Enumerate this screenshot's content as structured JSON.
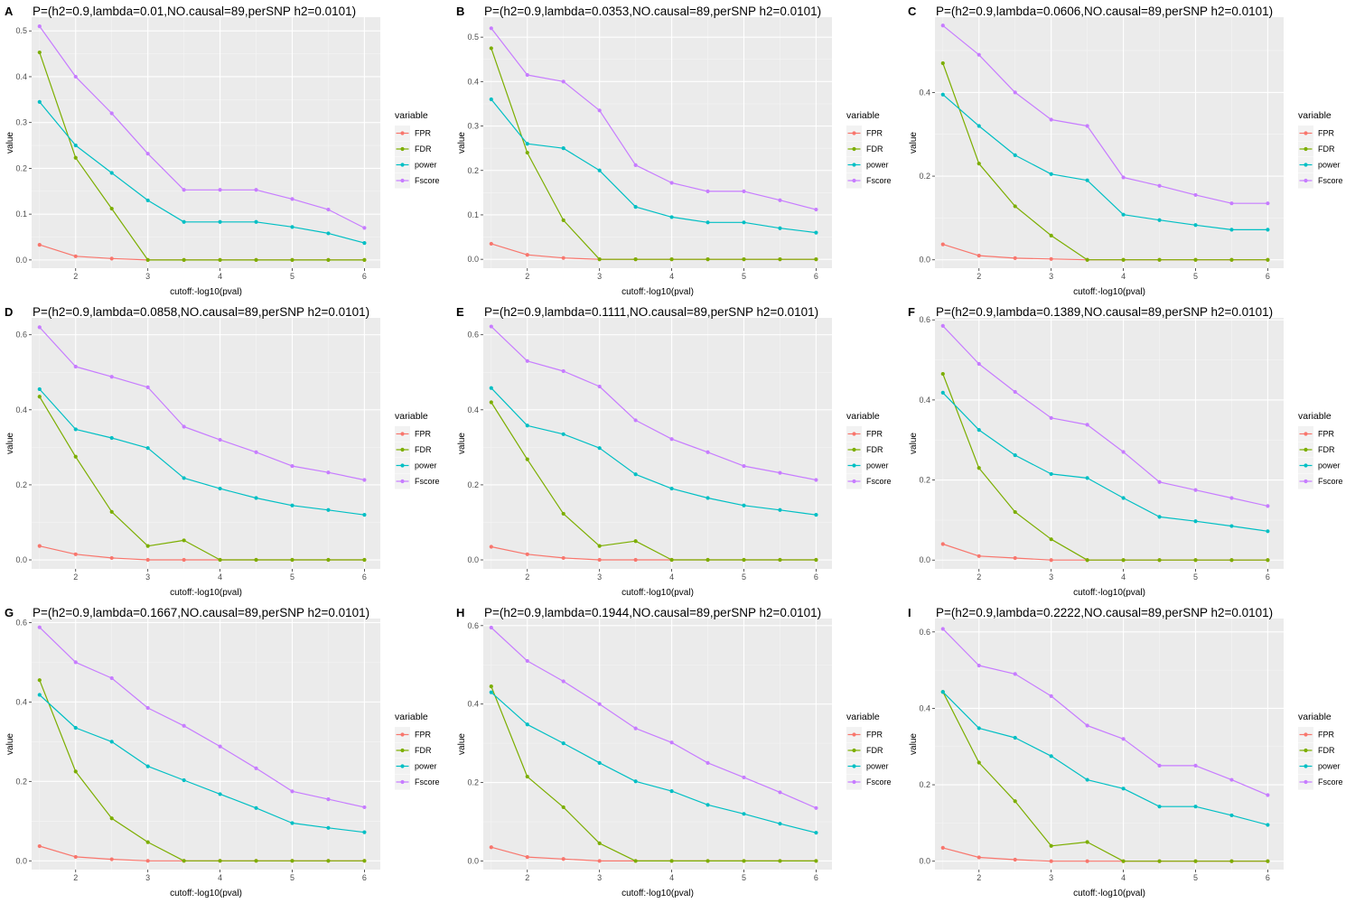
{
  "chart_data": [
    {
      "type": "line",
      "tag": "A",
      "title": "P=(h2=0.9,lambda=0.01,NO.causal=89,perSNP h2=0.0101)",
      "xlabel": "cutoff:-log10(pval)",
      "ylabel": "value",
      "x": [
        1.5,
        2,
        2.5,
        3,
        3.5,
        4,
        4.5,
        5,
        5.5,
        6
      ],
      "xlim": [
        1.39,
        6.22
      ],
      "xticks": [
        2,
        3,
        4,
        5,
        6
      ],
      "ylim": [
        -0.018,
        0.53
      ],
      "yticks": [
        0.0,
        0.1,
        0.2,
        0.3,
        0.4,
        0.5
      ],
      "yticklabels": [
        "0.0",
        "0.1",
        "0.2",
        "0.3",
        "0.4",
        "0.5"
      ],
      "legend_title": "variable",
      "series": [
        {
          "name": "FPR",
          "color": "#F8766D",
          "values": [
            0.033,
            0.008,
            0.003,
            0.0,
            0.0,
            0.0,
            0.0,
            0.0,
            0.0,
            0.0
          ]
        },
        {
          "name": "FDR",
          "color": "#7CAE00",
          "values": [
            0.453,
            0.223,
            0.112,
            0.0,
            0.0,
            0.0,
            0.0,
            0.0,
            0.0,
            0.0
          ]
        },
        {
          "name": "power",
          "color": "#00BFC4",
          "values": [
            0.345,
            0.25,
            0.19,
            0.13,
            0.083,
            0.083,
            0.083,
            0.072,
            0.058,
            0.037
          ]
        },
        {
          "name": "Fscore",
          "color": "#C77CFF",
          "values": [
            0.51,
            0.4,
            0.32,
            0.232,
            0.153,
            0.153,
            0.153,
            0.133,
            0.11,
            0.07
          ]
        }
      ]
    },
    {
      "type": "line",
      "tag": "B",
      "title": "P=(h2=0.9,lambda=0.0353,NO.causal=89,perSNP h2=0.0101)",
      "xlabel": "cutoff:-log10(pval)",
      "ylabel": "value",
      "x": [
        1.5,
        2,
        2.5,
        3,
        3.5,
        4,
        4.5,
        5,
        5.5,
        6
      ],
      "xlim": [
        1.39,
        6.22
      ],
      "xticks": [
        2,
        3,
        4,
        5,
        6
      ],
      "ylim": [
        -0.02,
        0.545
      ],
      "yticks": [
        0.0,
        0.1,
        0.2,
        0.3,
        0.4,
        0.5
      ],
      "yticklabels": [
        "0.0",
        "0.1",
        "0.2",
        "0.3",
        "0.4",
        "0.5"
      ],
      "legend_title": "variable",
      "series": [
        {
          "name": "FPR",
          "color": "#F8766D",
          "values": [
            0.035,
            0.01,
            0.003,
            0.0,
            0.0,
            0.0,
            0.0,
            0.0,
            0.0,
            0.0
          ]
        },
        {
          "name": "FDR",
          "color": "#7CAE00",
          "values": [
            0.475,
            0.24,
            0.088,
            0.0,
            0.0,
            0.0,
            0.0,
            0.0,
            0.0,
            0.0
          ]
        },
        {
          "name": "power",
          "color": "#00BFC4",
          "values": [
            0.36,
            0.26,
            0.25,
            0.2,
            0.118,
            0.095,
            0.083,
            0.083,
            0.07,
            0.06
          ]
        },
        {
          "name": "Fscore",
          "color": "#C77CFF",
          "values": [
            0.52,
            0.415,
            0.4,
            0.335,
            0.212,
            0.172,
            0.153,
            0.153,
            0.133,
            0.112
          ]
        }
      ]
    },
    {
      "type": "line",
      "tag": "C",
      "title": "P=(h2=0.9,lambda=0.0606,NO.causal=89,perSNP h2=0.0101)",
      "xlabel": "cutoff:-log10(pval)",
      "ylabel": "value",
      "x": [
        1.5,
        2,
        2.5,
        3,
        3.5,
        4,
        4.5,
        5,
        5.5,
        6
      ],
      "xlim": [
        1.39,
        6.22
      ],
      "xticks": [
        2,
        3,
        4,
        5,
        6
      ],
      "ylim": [
        -0.02,
        0.58
      ],
      "yticks": [
        0.0,
        0.2,
        0.4
      ],
      "yticklabels": [
        "0.0",
        "0.2",
        "0.4"
      ],
      "legend_title": "variable",
      "series": [
        {
          "name": "FPR",
          "color": "#F8766D",
          "values": [
            0.037,
            0.01,
            0.004,
            0.002,
            0.0,
            0.0,
            0.0,
            0.0,
            0.0,
            0.0
          ]
        },
        {
          "name": "FDR",
          "color": "#7CAE00",
          "values": [
            0.47,
            0.23,
            0.128,
            0.058,
            0.0,
            0.0,
            0.0,
            0.0,
            0.0,
            0.0
          ]
        },
        {
          "name": "power",
          "color": "#00BFC4",
          "values": [
            0.395,
            0.32,
            0.25,
            0.205,
            0.19,
            0.108,
            0.095,
            0.083,
            0.072,
            0.072
          ]
        },
        {
          "name": "Fscore",
          "color": "#C77CFF",
          "values": [
            0.56,
            0.49,
            0.4,
            0.335,
            0.32,
            0.197,
            0.177,
            0.155,
            0.135,
            0.135
          ]
        }
      ]
    },
    {
      "type": "line",
      "tag": "D",
      "title": "P=(h2=0.9,lambda=0.0858,NO.causal=89,perSNP h2=0.0101)",
      "xlabel": "cutoff:-log10(pval)",
      "ylabel": "value",
      "x": [
        1.5,
        2,
        2.5,
        3,
        3.5,
        4,
        4.5,
        5,
        5.5,
        6
      ],
      "xlim": [
        1.39,
        6.22
      ],
      "xticks": [
        2,
        3,
        4,
        5,
        6
      ],
      "ylim": [
        -0.024,
        0.645
      ],
      "yticks": [
        0.0,
        0.2,
        0.4,
        0.6
      ],
      "yticklabels": [
        "0.0",
        "0.2",
        "0.4",
        "0.6"
      ],
      "legend_title": "variable",
      "series": [
        {
          "name": "FPR",
          "color": "#F8766D",
          "values": [
            0.037,
            0.015,
            0.005,
            0.0,
            0.0,
            0.0,
            0.0,
            0.0,
            0.0,
            0.0
          ]
        },
        {
          "name": "FDR",
          "color": "#7CAE00",
          "values": [
            0.435,
            0.275,
            0.128,
            0.037,
            0.052,
            0.0,
            0.0,
            0.0,
            0.0,
            0.0
          ]
        },
        {
          "name": "power",
          "color": "#00BFC4",
          "values": [
            0.455,
            0.348,
            0.325,
            0.298,
            0.218,
            0.19,
            0.165,
            0.145,
            0.133,
            0.12
          ]
        },
        {
          "name": "Fscore",
          "color": "#C77CFF",
          "values": [
            0.62,
            0.515,
            0.488,
            0.46,
            0.355,
            0.32,
            0.287,
            0.25,
            0.233,
            0.213
          ]
        }
      ]
    },
    {
      "type": "line",
      "tag": "E",
      "title": "P=(h2=0.9,lambda=0.1111,NO.causal=89,perSNP h2=0.0101)",
      "xlabel": "cutoff:-log10(pval)",
      "ylabel": "value",
      "x": [
        1.5,
        2,
        2.5,
        3,
        3.5,
        4,
        4.5,
        5,
        5.5,
        6
      ],
      "xlim": [
        1.39,
        6.22
      ],
      "xticks": [
        2,
        3,
        4,
        5,
        6
      ],
      "ylim": [
        -0.024,
        0.645
      ],
      "yticks": [
        0.0,
        0.2,
        0.4,
        0.6
      ],
      "yticklabels": [
        "0.0",
        "0.2",
        "0.4",
        "0.6"
      ],
      "legend_title": "variable",
      "series": [
        {
          "name": "FPR",
          "color": "#F8766D",
          "values": [
            0.035,
            0.015,
            0.005,
            0.0,
            0.0,
            0.0,
            0.0,
            0.0,
            0.0,
            0.0
          ]
        },
        {
          "name": "FDR",
          "color": "#7CAE00",
          "values": [
            0.42,
            0.268,
            0.123,
            0.037,
            0.05,
            0.0,
            0.0,
            0.0,
            0.0,
            0.0
          ]
        },
        {
          "name": "power",
          "color": "#00BFC4",
          "values": [
            0.458,
            0.358,
            0.335,
            0.298,
            0.228,
            0.19,
            0.165,
            0.145,
            0.133,
            0.12
          ]
        },
        {
          "name": "Fscore",
          "color": "#C77CFF",
          "values": [
            0.622,
            0.53,
            0.503,
            0.462,
            0.372,
            0.322,
            0.287,
            0.25,
            0.232,
            0.213
          ]
        }
      ]
    },
    {
      "type": "line",
      "tag": "F",
      "title": "P=(h2=0.9,lambda=0.1389,NO.causal=89,perSNP h2=0.0101)",
      "xlabel": "cutoff:-log10(pval)",
      "ylabel": "value",
      "x": [
        1.5,
        2,
        2.5,
        3,
        3.5,
        4,
        4.5,
        5,
        5.5,
        6
      ],
      "xlim": [
        1.39,
        6.22
      ],
      "xticks": [
        2,
        3,
        4,
        5,
        6
      ],
      "ylim": [
        -0.022,
        0.605
      ],
      "yticks": [
        0.0,
        0.2,
        0.4,
        0.6
      ],
      "yticklabels": [
        "0.0",
        "0.2",
        "0.4",
        "0.6"
      ],
      "legend_title": "variable",
      "series": [
        {
          "name": "FPR",
          "color": "#F8766D",
          "values": [
            0.04,
            0.01,
            0.005,
            0.0,
            0.0,
            0.0,
            0.0,
            0.0,
            0.0,
            0.0
          ]
        },
        {
          "name": "FDR",
          "color": "#7CAE00",
          "values": [
            0.465,
            0.23,
            0.12,
            0.052,
            0.0,
            0.0,
            0.0,
            0.0,
            0.0,
            0.0
          ]
        },
        {
          "name": "power",
          "color": "#00BFC4",
          "values": [
            0.418,
            0.325,
            0.262,
            0.215,
            0.205,
            0.155,
            0.108,
            0.097,
            0.085,
            0.072
          ]
        },
        {
          "name": "Fscore",
          "color": "#C77CFF",
          "values": [
            0.585,
            0.49,
            0.42,
            0.355,
            0.338,
            0.27,
            0.195,
            0.175,
            0.155,
            0.135
          ]
        }
      ]
    },
    {
      "type": "line",
      "tag": "G",
      "title": "P=(h2=0.9,lambda=0.1667,NO.causal=89,perSNP h2=0.0101)",
      "xlabel": "cutoff:-log10(pval)",
      "ylabel": "value",
      "x": [
        1.5,
        2,
        2.5,
        3,
        3.5,
        4,
        4.5,
        5,
        5.5,
        6
      ],
      "xlim": [
        1.39,
        6.22
      ],
      "xticks": [
        2,
        3,
        4,
        5,
        6
      ],
      "ylim": [
        -0.022,
        0.61
      ],
      "yticks": [
        0.0,
        0.2,
        0.4,
        0.6
      ],
      "yticklabels": [
        "0.0",
        "0.2",
        "0.4",
        "0.6"
      ],
      "legend_title": "variable",
      "series": [
        {
          "name": "FPR",
          "color": "#F8766D",
          "values": [
            0.037,
            0.01,
            0.004,
            0.0,
            0.0,
            0.0,
            0.0,
            0.0,
            0.0,
            0.0
          ]
        },
        {
          "name": "FDR",
          "color": "#7CAE00",
          "values": [
            0.455,
            0.225,
            0.107,
            0.047,
            0.0,
            0.0,
            0.0,
            0.0,
            0.0,
            0.0
          ]
        },
        {
          "name": "power",
          "color": "#00BFC4",
          "values": [
            0.418,
            0.335,
            0.3,
            0.238,
            0.203,
            0.168,
            0.133,
            0.095,
            0.083,
            0.072
          ]
        },
        {
          "name": "Fscore",
          "color": "#C77CFF",
          "values": [
            0.588,
            0.5,
            0.46,
            0.385,
            0.34,
            0.288,
            0.233,
            0.175,
            0.155,
            0.135
          ]
        }
      ]
    },
    {
      "type": "line",
      "tag": "H",
      "title": "P=(h2=0.9,lambda=0.1944,NO.causal=89,perSNP h2=0.0101)",
      "xlabel": "cutoff:-log10(pval)",
      "ylabel": "value",
      "x": [
        1.5,
        2,
        2.5,
        3,
        3.5,
        4,
        4.5,
        5,
        5.5,
        6
      ],
      "xlim": [
        1.39,
        6.22
      ],
      "xticks": [
        2,
        3,
        4,
        5,
        6
      ],
      "ylim": [
        -0.022,
        0.618
      ],
      "yticks": [
        0.0,
        0.2,
        0.4,
        0.6
      ],
      "yticklabels": [
        "0.0",
        "0.2",
        "0.4",
        "0.6"
      ],
      "legend_title": "variable",
      "series": [
        {
          "name": "FPR",
          "color": "#F8766D",
          "values": [
            0.035,
            0.01,
            0.005,
            0.0,
            0.0,
            0.0,
            0.0,
            0.0,
            0.0,
            0.0
          ]
        },
        {
          "name": "FDR",
          "color": "#7CAE00",
          "values": [
            0.445,
            0.215,
            0.137,
            0.045,
            0.0,
            0.0,
            0.0,
            0.0,
            0.0,
            0.0
          ]
        },
        {
          "name": "power",
          "color": "#00BFC4",
          "values": [
            0.43,
            0.348,
            0.3,
            0.25,
            0.203,
            0.178,
            0.143,
            0.12,
            0.095,
            0.072
          ]
        },
        {
          "name": "Fscore",
          "color": "#C77CFF",
          "values": [
            0.595,
            0.51,
            0.458,
            0.4,
            0.338,
            0.302,
            0.25,
            0.213,
            0.175,
            0.135
          ]
        }
      ]
    },
    {
      "type": "line",
      "tag": "I",
      "title": "P=(h2=0.9,lambda=0.2222,NO.causal=89,perSNP h2=0.0101)",
      "xlabel": "cutoff:-log10(pval)",
      "ylabel": "value",
      "x": [
        1.5,
        2,
        2.5,
        3,
        3.5,
        4,
        4.5,
        5,
        5.5,
        6
      ],
      "xlim": [
        1.39,
        6.22
      ],
      "xticks": [
        2,
        3,
        4,
        5,
        6
      ],
      "ylim": [
        -0.022,
        0.635
      ],
      "yticks": [
        0.0,
        0.2,
        0.4,
        0.6
      ],
      "yticklabels": [
        "0.0",
        "0.2",
        "0.4",
        "0.6"
      ],
      "legend_title": "variable",
      "series": [
        {
          "name": "FPR",
          "color": "#F8766D",
          "values": [
            0.035,
            0.01,
            0.004,
            0.0,
            0.0,
            0.0,
            0.0,
            0.0,
            0.0,
            0.0
          ]
        },
        {
          "name": "FDR",
          "color": "#7CAE00",
          "values": [
            0.443,
            0.258,
            0.157,
            0.04,
            0.05,
            0.0,
            0.0,
            0.0,
            0.0,
            0.0
          ]
        },
        {
          "name": "power",
          "color": "#00BFC4",
          "values": [
            0.443,
            0.348,
            0.323,
            0.275,
            0.213,
            0.19,
            0.143,
            0.143,
            0.12,
            0.095
          ]
        },
        {
          "name": "Fscore",
          "color": "#C77CFF",
          "values": [
            0.608,
            0.512,
            0.49,
            0.432,
            0.355,
            0.32,
            0.25,
            0.25,
            0.213,
            0.173
          ]
        }
      ]
    }
  ]
}
